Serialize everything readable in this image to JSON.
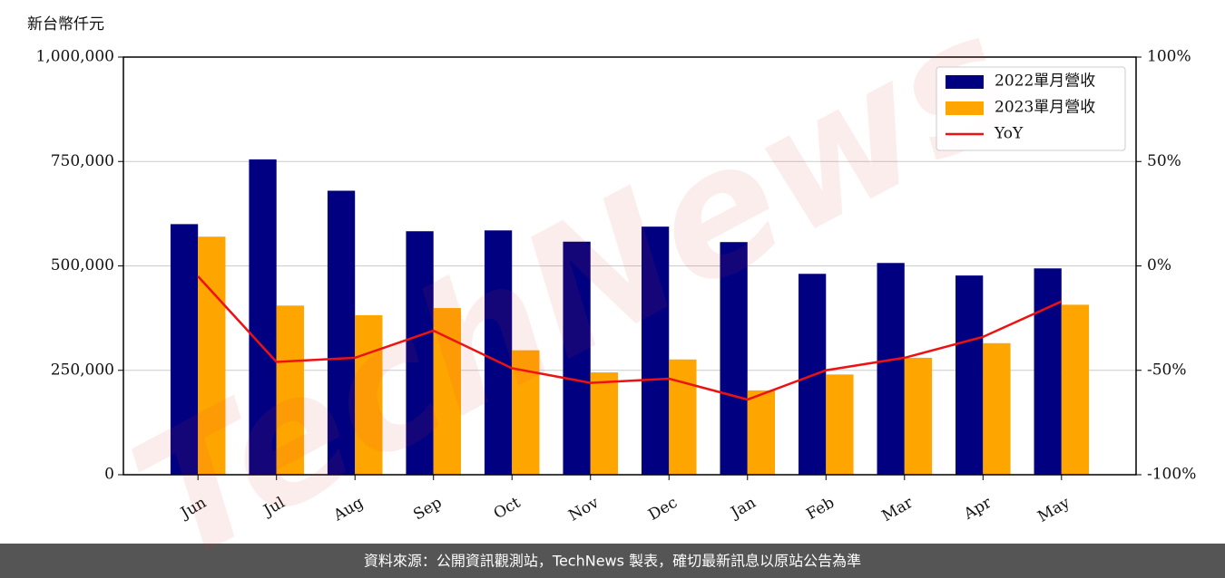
{
  "chart_data": {
    "type": "bar_line",
    "y_label": "新台幣仟元",
    "watermark": "TechNews",
    "footer": "資料來源：公開資訊觀測站，TechNews 製表，確切最新訊息以原站公告為準",
    "categories": [
      "Jun",
      "Jul",
      "Aug",
      "Sep",
      "Oct",
      "Nov",
      "Dec",
      "Jan",
      "Feb",
      "Mar",
      "Apr",
      "May"
    ],
    "series": [
      {
        "name": "2022單月營收",
        "type": "bar",
        "color": "#000080",
        "values": [
          600000,
          755000,
          680000,
          583000,
          585000,
          558000,
          594000,
          557000,
          481000,
          507000,
          477000,
          494000
        ]
      },
      {
        "name": "2023單月營收",
        "type": "bar",
        "color": "#ffa500",
        "values": [
          570000,
          405000,
          382000,
          399000,
          298000,
          245000,
          276000,
          202000,
          240000,
          280000,
          315000,
          407000
        ]
      },
      {
        "name": "YoY",
        "type": "line",
        "axis": "y2",
        "color": "#ee1111",
        "values": [
          -5,
          -46,
          -44,
          -31,
          -49,
          -56,
          -54,
          -64,
          -50,
          -44,
          -34,
          -17
        ]
      }
    ],
    "ylim": [
      0,
      1000000
    ],
    "yticks": [
      0,
      {
        "value": 250000,
        "label": "250,000"
      },
      {
        "value": 500000,
        "label": "500,000"
      },
      {
        "value": 750000,
        "label": "750,000"
      },
      {
        "value": 1000000,
        "label": "1,000,000"
      }
    ],
    "y2lim": [
      -100,
      100
    ],
    "y2ticks": [
      {
        "value": -100,
        "label": "-100%"
      },
      {
        "value": -50,
        "label": "-50%"
      },
      {
        "value": 0,
        "label": "0%"
      },
      {
        "value": 50,
        "label": "50%"
      },
      {
        "value": 100,
        "label": "100%"
      }
    ],
    "grid": true,
    "legend": "upper right"
  }
}
